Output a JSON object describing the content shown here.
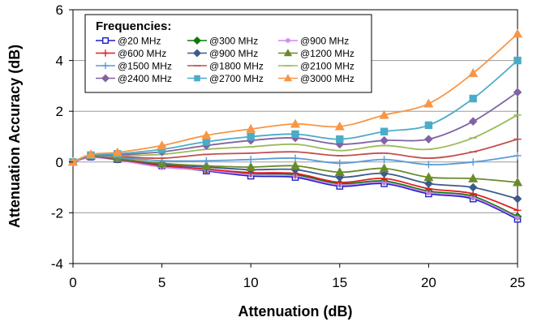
{
  "chart_data": {
    "type": "line",
    "xlabel": "Attenuation (dB)",
    "ylabel": "Attenuation Accuracy (dB)",
    "xlim": [
      0,
      25
    ],
    "ylim": [
      -4,
      6
    ],
    "xticks": [
      0,
      5,
      10,
      15,
      20,
      25
    ],
    "yticks": [
      -4,
      -2,
      0,
      2,
      4,
      6
    ],
    "grid": "horizontal",
    "legend": {
      "title": "Frequencies:",
      "placement": "top-left",
      "columns": 3
    },
    "x": [
      0,
      1,
      2.5,
      5,
      7.5,
      10,
      12.5,
      15,
      17.5,
      20,
      22.5,
      25
    ],
    "series": [
      {
        "name": "@20 MHz",
        "color": "#1f1fc8",
        "marker": "square-open",
        "values": [
          0,
          0.2,
          0.1,
          -0.15,
          -0.35,
          -0.55,
          -0.6,
          -0.95,
          -0.85,
          -1.25,
          -1.45,
          -2.25
        ]
      },
      {
        "name": "@300 MHz",
        "color": "#0a7a0a",
        "marker": "diamond",
        "values": [
          0,
          0.22,
          0.12,
          -0.12,
          -0.3,
          -0.45,
          -0.5,
          -0.85,
          -0.75,
          -1.15,
          -1.35,
          -2.15
        ]
      },
      {
        "name": "@900 MHz",
        "color": "#cc88ee",
        "marker": "star",
        "values": [
          0,
          0.18,
          0.08,
          -0.2,
          -0.32,
          -0.5,
          -0.55,
          -0.9,
          -0.8,
          -1.2,
          -1.4,
          -2.2
        ]
      },
      {
        "name": "@600 MHz",
        "color": "#e02020",
        "marker": "plus",
        "values": [
          0,
          0.22,
          0.1,
          -0.12,
          -0.28,
          -0.42,
          -0.45,
          -0.8,
          -0.65,
          -1.05,
          -1.25,
          -1.9
        ]
      },
      {
        "name": "@900 MHz",
        "color": "#3c5a8c",
        "marker": "diamond",
        "values": [
          0,
          0.22,
          0.12,
          -0.08,
          -0.2,
          -0.3,
          -0.3,
          -0.6,
          -0.45,
          -0.85,
          -1.0,
          -1.45
        ]
      },
      {
        "name": "@1200 MHz",
        "color": "#6a8a2a",
        "marker": "triangle",
        "values": [
          0,
          0.24,
          0.14,
          -0.05,
          -0.15,
          -0.2,
          -0.15,
          -0.4,
          -0.25,
          -0.6,
          -0.65,
          -0.8
        ]
      },
      {
        "name": "@1500 MHz",
        "color": "#5b9bd5",
        "marker": "plus",
        "values": [
          0,
          0.25,
          0.18,
          0.05,
          0.05,
          0.1,
          0.15,
          -0.05,
          0.1,
          -0.1,
          0,
          0.25
        ]
      },
      {
        "name": "@1800 MHz",
        "color": "#c0504d",
        "marker": "dash",
        "values": [
          0,
          0.25,
          0.22,
          0.15,
          0.3,
          0.35,
          0.4,
          0.25,
          0.35,
          0.15,
          0.4,
          0.9
        ]
      },
      {
        "name": "@2100 MHz",
        "color": "#9bbb59",
        "marker": "dash",
        "values": [
          0,
          0.25,
          0.25,
          0.3,
          0.5,
          0.6,
          0.7,
          0.45,
          0.65,
          0.5,
          0.95,
          1.85
        ]
      },
      {
        "name": "@2400 MHz",
        "color": "#8064a2",
        "marker": "diamond",
        "values": [
          0,
          0.25,
          0.28,
          0.4,
          0.65,
          0.85,
          0.95,
          0.7,
          0.85,
          0.9,
          1.6,
          2.75
        ]
      },
      {
        "name": "@2700 MHz",
        "color": "#4bacc6",
        "marker": "square",
        "values": [
          0,
          0.27,
          0.32,
          0.5,
          0.8,
          1.0,
          1.1,
          0.9,
          1.2,
          1.45,
          2.5,
          4.0
        ]
      },
      {
        "name": "@3000 MHz",
        "color": "#f79646",
        "marker": "triangle",
        "values": [
          0,
          0.3,
          0.38,
          0.65,
          1.05,
          1.3,
          1.5,
          1.4,
          1.85,
          2.3,
          3.5,
          5.05
        ]
      }
    ]
  }
}
